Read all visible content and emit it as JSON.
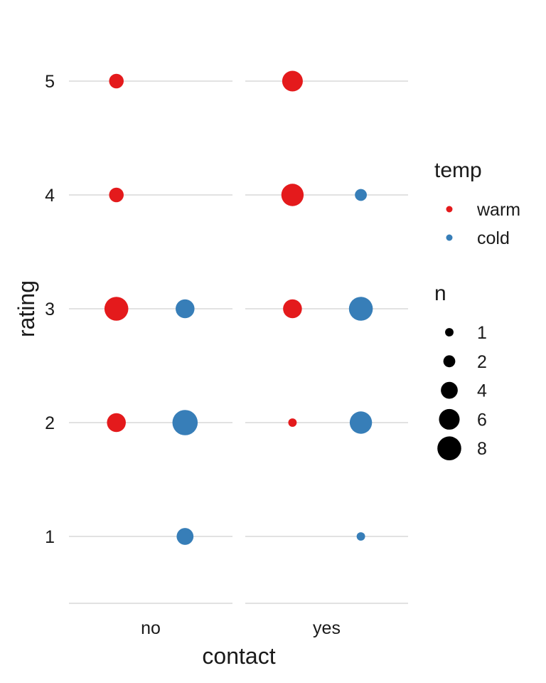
{
  "chart_data": {
    "type": "scatter",
    "xlabel": "contact",
    "ylabel": "rating",
    "facets": [
      "no",
      "yes"
    ],
    "y_ticks": [
      "1",
      "2",
      "3",
      "4",
      "5"
    ],
    "ylim": [
      0.4,
      5.6
    ],
    "grid": "horizontal major",
    "legend_position": "right",
    "colors": {
      "warm": "#e41a1c",
      "cold": "#377eb8"
    },
    "color_legend": {
      "title": "temp",
      "entries": [
        "warm",
        "cold"
      ]
    },
    "size_legend": {
      "title": "n",
      "breaks": [
        1,
        2,
        4,
        6,
        8
      ],
      "labels": [
        "1",
        "2",
        "4",
        "6",
        "8"
      ]
    },
    "series": [
      {
        "contact": "no",
        "temp": "warm",
        "points": [
          {
            "rating": 5,
            "n": 3
          },
          {
            "rating": 4,
            "n": 3
          },
          {
            "rating": 3,
            "n": 8
          },
          {
            "rating": 2,
            "n": 5
          }
        ]
      },
      {
        "contact": "no",
        "temp": "cold",
        "points": [
          {
            "rating": 3,
            "n": 5
          },
          {
            "rating": 2,
            "n": 9
          },
          {
            "rating": 1,
            "n": 4
          }
        ]
      },
      {
        "contact": "yes",
        "temp": "warm",
        "points": [
          {
            "rating": 5,
            "n": 6
          },
          {
            "rating": 4,
            "n": 7
          },
          {
            "rating": 3,
            "n": 5
          },
          {
            "rating": 2,
            "n": 1
          }
        ]
      },
      {
        "contact": "yes",
        "temp": "cold",
        "points": [
          {
            "rating": 4,
            "n": 2
          },
          {
            "rating": 3,
            "n": 8
          },
          {
            "rating": 2,
            "n": 7
          },
          {
            "rating": 1,
            "n": 1
          }
        ]
      }
    ]
  }
}
